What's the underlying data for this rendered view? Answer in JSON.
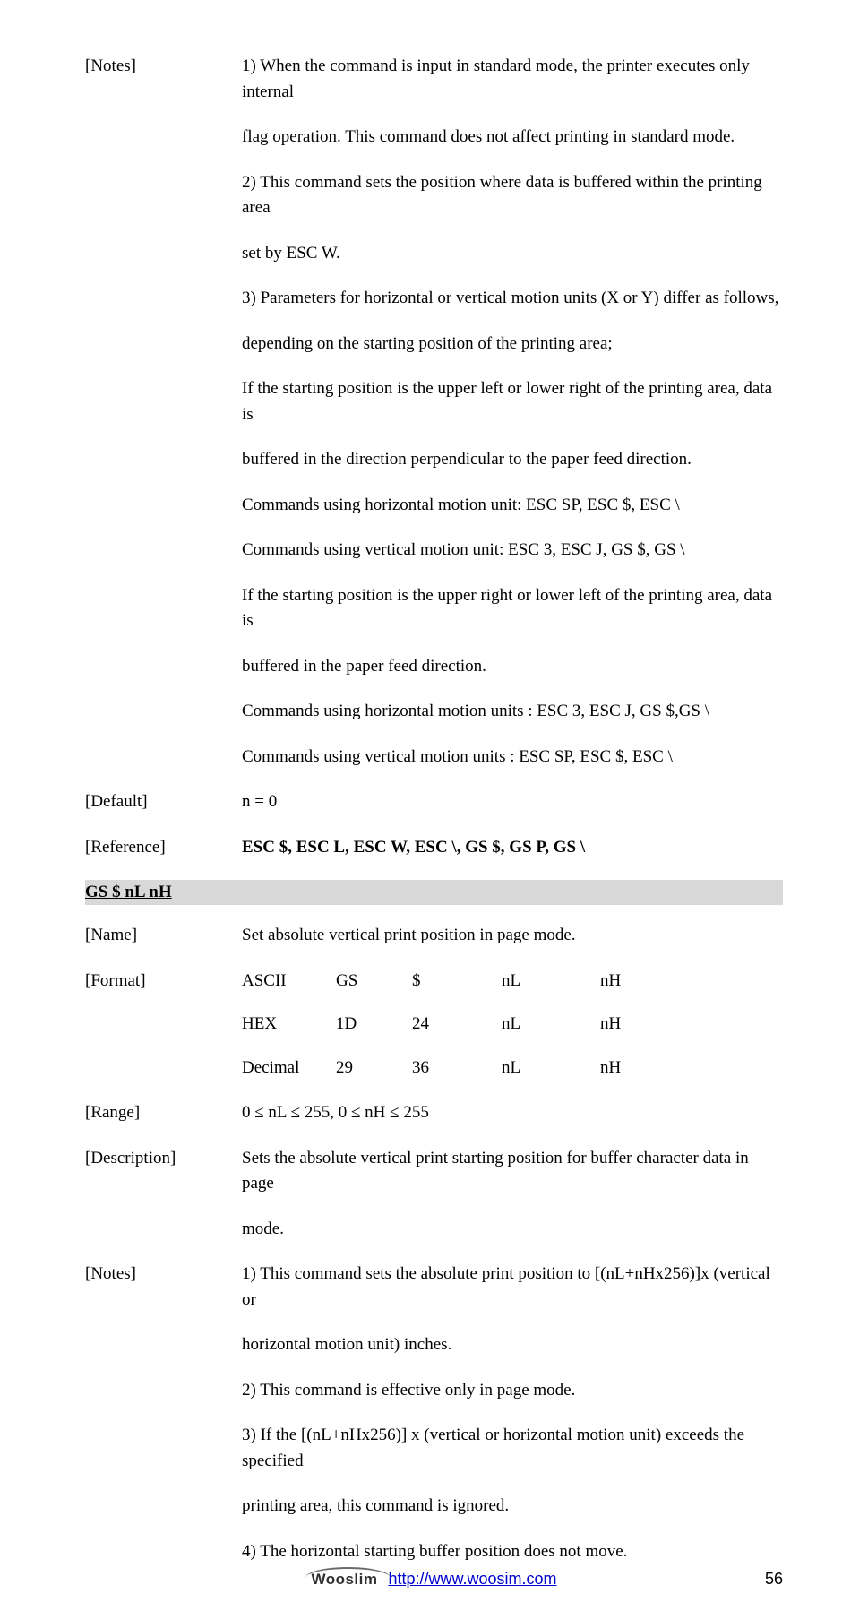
{
  "block1": {
    "label_notes": "[Notes]",
    "p1": "1) When the command is input in standard mode, the printer executes only internal",
    "p2": "flag operation. This command does not affect printing in standard mode.",
    "p3": "2) This command sets the position where data is buffered within the printing area",
    "p4": "set by ESC W.",
    "p5": "3) Parameters for horizontal or vertical motion units (X or Y) differ as follows,",
    "p6": "depending on the starting position of the printing area;",
    "p7": "If the starting position is the upper left or lower right of the printing area, data is",
    "p8": "buffered in the direction perpendicular to the paper feed direction.",
    "p9": "Commands using horizontal motion unit: ESC SP, ESC $, ESC \\",
    "p10": "Commands using vertical motion unit: ESC 3, ESC J, GS $, GS \\",
    "p11": "If the starting position is the upper right or lower left of the printing area, data is",
    "p12": "buffered in the paper feed direction.",
    "p13": "Commands using horizontal motion units : ESC 3, ESC J, GS $,GS \\",
    "p14": "Commands using vertical motion units : ESC SP, ESC $, ESC \\",
    "label_default": "[Default]",
    "default_val": "n = 0",
    "label_reference": "[Reference]",
    "reference_val": "ESC $, ESC L, ESC W, ESC \\, GS $, GS P, GS \\"
  },
  "heading": "GS  $  nL  nH",
  "block2": {
    "label_name": "[Name]",
    "name_val": "Set absolute vertical print position in page mode.",
    "label_format": "[Format]",
    "fmt": {
      "r1c1": "ASCII",
      "r1c2": "GS",
      "r1c3": "$",
      "r1c4": "nL",
      "r1c5": "nH",
      "r2c1": "HEX",
      "r2c2": "1D",
      "r2c3": "24",
      "r2c4": "nL",
      "r2c5": "nH",
      "r3c1": "Decimal",
      "r3c2": "29",
      "r3c3": "36",
      "r3c4": "nL",
      "r3c5": "nH"
    },
    "label_range": "[Range]",
    "range_val": "0  ≤  nL  ≤  255,  0  ≤  nH  ≤  255",
    "label_description": "[Description]",
    "desc1": "Sets the absolute vertical print starting position for buffer character data in page",
    "desc2": "mode.",
    "label_notes": "[Notes]",
    "n1": "1) This command sets the absolute print position to [(nL+nHx256)]x (vertical or",
    "n2": "horizontal motion unit) inches.",
    "n3": "2) This command is effective only in page mode.",
    "n4": "3) If the [(nL+nHx256)] x (vertical or horizontal motion unit) exceeds the specified",
    "n5": "printing area, this command is ignored.",
    "n6": "4) The horizontal starting buffer position does not move."
  },
  "footer": {
    "logo_text": "Wooslim",
    "link_text": "http://www.woosim.com",
    "page_num": "56"
  }
}
